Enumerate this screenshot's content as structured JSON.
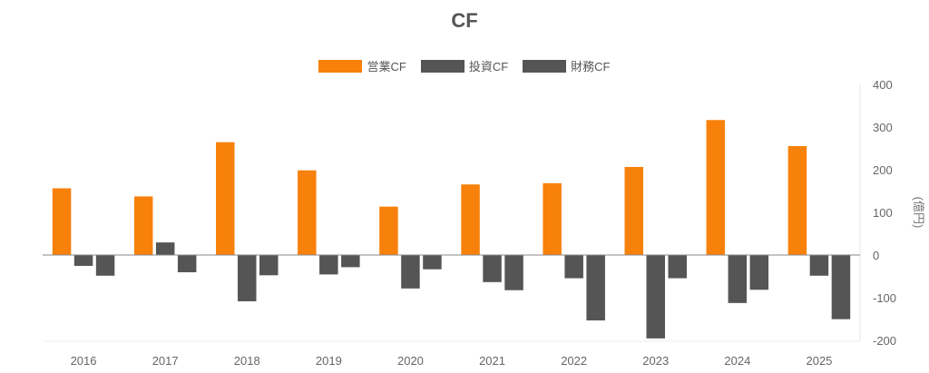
{
  "chart_data": {
    "type": "bar",
    "title": "CF",
    "categories": [
      "2016",
      "2017",
      "2018",
      "2019",
      "2020",
      "2021",
      "2022",
      "2023",
      "2024",
      "2025"
    ],
    "series": [
      {
        "name": "営業CF",
        "color": "#f7810b",
        "values": [
          157,
          138,
          265,
          199,
          114,
          166,
          169,
          207,
          317,
          256
        ]
      },
      {
        "name": "投資CF",
        "color": "#555555",
        "values": [
          -26,
          30,
          -109,
          -46,
          -79,
          -64,
          -55,
          -196,
          -113,
          -49
        ]
      },
      {
        "name": "財務CF",
        "color": "#555555",
        "values": [
          -49,
          -41,
          -48,
          -29,
          -34,
          -83,
          -154,
          -55,
          -82,
          -151
        ]
      }
    ],
    "ylabel": "(億円)",
    "ylim": [
      -200,
      400
    ],
    "yticks": [
      "400",
      "300",
      "200",
      "100",
      "0",
      "-100",
      "-200"
    ],
    "ytick_values": [
      400,
      300,
      200,
      100,
      0,
      -100,
      -200
    ],
    "legend_position": "top-center",
    "grid": false
  }
}
